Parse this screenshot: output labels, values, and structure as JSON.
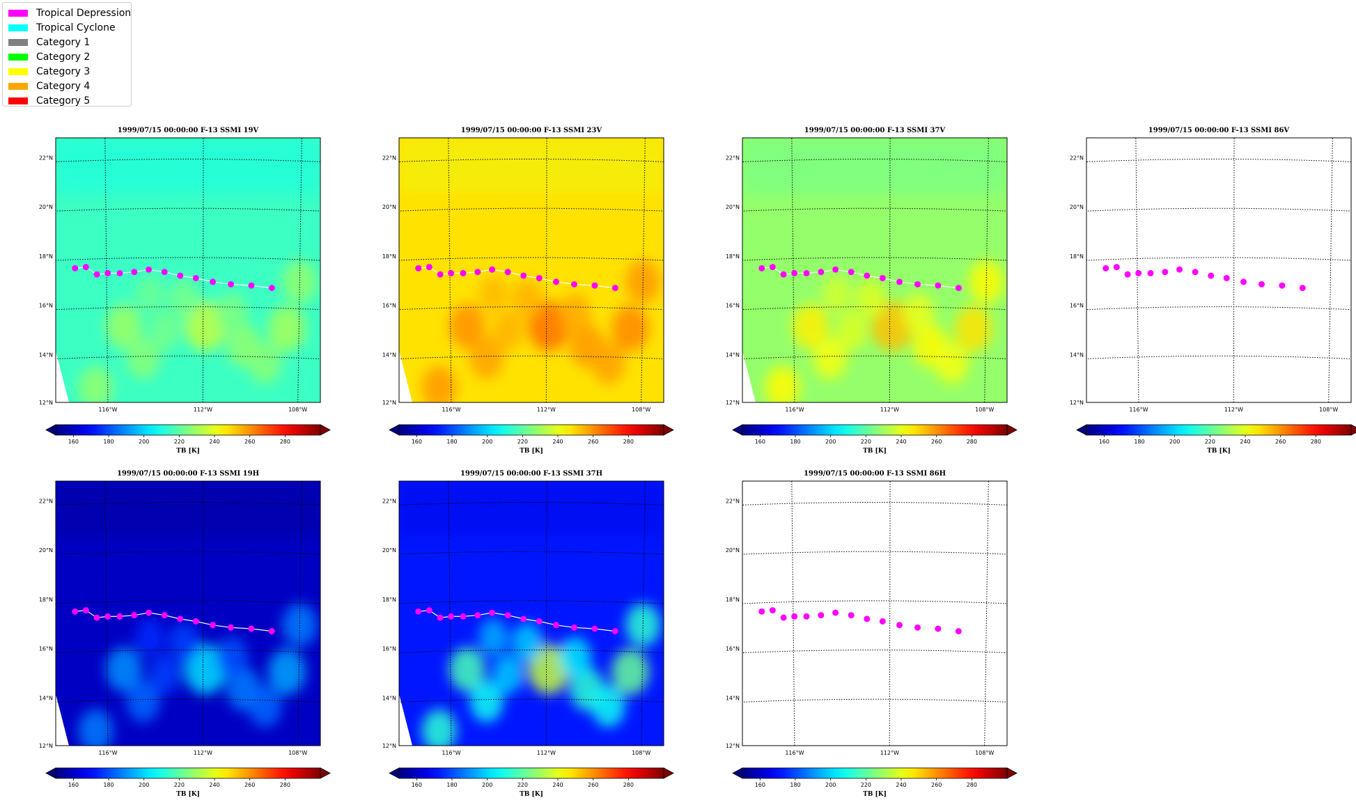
{
  "legend": {
    "items": [
      {
        "label": "Tropical Depression",
        "color": "#ff00ff"
      },
      {
        "label": "Tropical Cyclone",
        "color": "#00ffff"
      },
      {
        "label": "Category 1",
        "color": "#808080"
      },
      {
        "label": "Category 2",
        "color": "#00ff00"
      },
      {
        "label": "Category 3",
        "color": "#ffff00"
      },
      {
        "label": "Category 4",
        "color": "#ffa500"
      },
      {
        "label": "Category 5",
        "color": "#ff0000"
      }
    ]
  },
  "chart_data": [
    {
      "type": "heatmap",
      "title": "1999/07/15 00:00:00  F-13 SSMI 19V",
      "field": "19V",
      "has_data": true,
      "background_tb": 215,
      "track_line": true,
      "lat_ticks": [
        "22°N",
        "20°N",
        "18°N",
        "16°N",
        "14°N",
        "12°N"
      ],
      "lon_ticks": [
        "116°W",
        "112°W",
        "108°W"
      ],
      "colorbar": {
        "label": "TB [K]",
        "ticks": [
          "160",
          "180",
          "200",
          "220",
          "240",
          "260",
          "280"
        ],
        "range": [
          150,
          300
        ],
        "extend": "both"
      }
    },
    {
      "type": "heatmap",
      "title": "1999/07/15 00:00:00  F-13 SSMI 23V",
      "field": "23V",
      "has_data": true,
      "background_tb": 248,
      "track_line": true,
      "lat_ticks": [
        "22°N",
        "20°N",
        "18°N",
        "16°N",
        "14°N",
        "12°N"
      ],
      "lon_ticks": [
        "116°W",
        "112°W",
        "108°W"
      ],
      "colorbar": {
        "label": "TB [K]",
        "ticks": [
          "160",
          "180",
          "200",
          "220",
          "240",
          "260",
          "280"
        ],
        "range": [
          150,
          300
        ],
        "extend": "both"
      }
    },
    {
      "type": "heatmap",
      "title": "1999/07/15 00:00:00  F-13 SSMI 37V",
      "field": "37V",
      "has_data": true,
      "background_tb": 228,
      "track_line": true,
      "lat_ticks": [
        "22°N",
        "20°N",
        "18°N",
        "16°N",
        "14°N",
        "12°N"
      ],
      "lon_ticks": [
        "116°W",
        "112°W",
        "108°W"
      ],
      "colorbar": {
        "label": "TB [K]",
        "ticks": [
          "160",
          "180",
          "200",
          "220",
          "240",
          "260",
          "280"
        ],
        "range": [
          150,
          300
        ],
        "extend": "both"
      }
    },
    {
      "type": "heatmap",
      "title": "1999/07/15 00:00:00  F-13 SSMI 86V",
      "field": "86V",
      "has_data": false,
      "background_tb": null,
      "track_line": false,
      "lat_ticks": [
        "22°N",
        "20°N",
        "18°N",
        "16°N",
        "14°N",
        "12°N"
      ],
      "lon_ticks": [
        "116°W",
        "112°W",
        "108°W"
      ],
      "colorbar": {
        "label": "TB [K]",
        "ticks": [
          "160",
          "180",
          "200",
          "220",
          "240",
          "260",
          "280"
        ],
        "range": [
          150,
          300
        ],
        "extend": "both"
      }
    },
    {
      "type": "heatmap",
      "title": "1999/07/15 00:00:00  F-13 SSMI 19H",
      "field": "19H",
      "has_data": true,
      "background_tb": 160,
      "track_line": true,
      "lat_ticks": [
        "22°N",
        "20°N",
        "18°N",
        "16°N",
        "14°N",
        "12°N"
      ],
      "lon_ticks": [
        "116°W",
        "112°W",
        "108°W"
      ],
      "colorbar": {
        "label": "TB [K]",
        "ticks": [
          "160",
          "180",
          "200",
          "220",
          "240",
          "260",
          "280"
        ],
        "range": [
          150,
          300
        ],
        "extend": "both"
      }
    },
    {
      "type": "heatmap",
      "title": "1999/07/15 00:00:00  F-13 SSMI 37H",
      "field": "37H",
      "has_data": true,
      "background_tb": 172,
      "track_line": true,
      "lat_ticks": [
        "22°N",
        "20°N",
        "18°N",
        "16°N",
        "14°N",
        "12°N"
      ],
      "lon_ticks": [
        "116°W",
        "112°W",
        "108°W"
      ],
      "colorbar": {
        "label": "TB [K]",
        "ticks": [
          "160",
          "180",
          "200",
          "220",
          "240",
          "260",
          "280"
        ],
        "range": [
          150,
          300
        ],
        "extend": "both"
      }
    },
    {
      "type": "heatmap",
      "title": "1999/07/15 00:00:00  F-13 SSMI 86H",
      "field": "86H",
      "has_data": false,
      "background_tb": null,
      "track_line": false,
      "lat_ticks": [
        "22°N",
        "20°N",
        "18°N",
        "16°N",
        "14°N",
        "12°N"
      ],
      "lon_ticks": [
        "116°W",
        "112°W",
        "108°W"
      ],
      "colorbar": {
        "label": "TB [K]",
        "ticks": [
          "160",
          "180",
          "200",
          "220",
          "240",
          "260",
          "280"
        ],
        "range": [
          150,
          300
        ],
        "extend": "both"
      }
    }
  ],
  "track": {
    "category": "Tropical Depression",
    "color": "#ff00ff",
    "points": [
      {
        "lon": -117.3,
        "lat": 17.45
      },
      {
        "lon": -116.85,
        "lat": 17.5
      },
      {
        "lon": -116.4,
        "lat": 17.2
      },
      {
        "lon": -115.95,
        "lat": 17.25
      },
      {
        "lon": -115.45,
        "lat": 17.25
      },
      {
        "lon": -114.85,
        "lat": 17.3
      },
      {
        "lon": -114.25,
        "lat": 17.4
      },
      {
        "lon": -113.6,
        "lat": 17.3
      },
      {
        "lon": -112.95,
        "lat": 17.15
      },
      {
        "lon": -112.3,
        "lat": 17.05
      },
      {
        "lon": -111.6,
        "lat": 16.9
      },
      {
        "lon": -110.85,
        "lat": 16.8
      },
      {
        "lon": -110.0,
        "lat": 16.75
      },
      {
        "lon": -109.15,
        "lat": 16.65
      }
    ]
  }
}
